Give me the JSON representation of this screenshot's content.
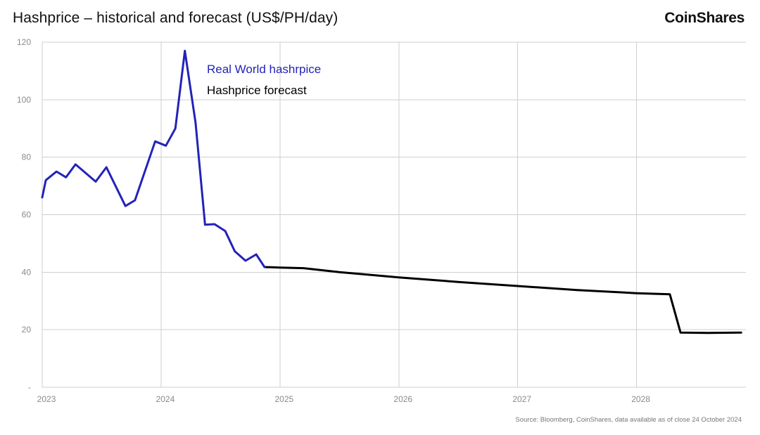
{
  "header": {
    "title": "Hashprice – historical and forecast (US$/PH/day)",
    "brand": "CoinShares"
  },
  "footer": {
    "source": "Source: Bloomberg, CoinShares, data available as of close 24 October 2024"
  },
  "colors": {
    "historical": "#2323b8",
    "forecast": "#000000",
    "grid": "#cfcfcf",
    "tick": "#8a8a8a"
  },
  "chart_data": {
    "type": "line",
    "title": "Hashprice – historical and forecast (US$/PH/day)",
    "xlabel": "",
    "ylabel": "",
    "xlim": [
      2023,
      2028.92
    ],
    "ylim": [
      0,
      120
    ],
    "y_ticks": [
      0,
      20,
      40,
      60,
      80,
      100,
      120
    ],
    "y_tick_labels": [
      "-",
      "20",
      "40",
      "60",
      "80",
      "100",
      "120"
    ],
    "x_ticks": [
      2023,
      2024,
      2025,
      2026,
      2027,
      2028
    ],
    "x_tick_labels": [
      "2023",
      "2024",
      "2025",
      "2026",
      "2027",
      "2028"
    ],
    "grid": true,
    "legend_position": "top-left",
    "series": [
      {
        "name": "Real World hashrpice",
        "color": "#2323b8",
        "x": [
          2023.0,
          2023.03,
          2023.12,
          2023.2,
          2023.28,
          2023.45,
          2023.54,
          2023.7,
          2023.78,
          2023.95,
          2024.04,
          2024.12,
          2024.2,
          2024.29,
          2024.37,
          2024.45,
          2024.54,
          2024.62,
          2024.71,
          2024.8,
          2024.87
        ],
        "y": [
          66,
          72,
          75,
          73,
          77.5,
          71.5,
          76.5,
          63,
          65,
          85.5,
          84,
          90,
          117,
          92,
          56.5,
          56.7,
          54.3,
          47.3,
          44,
          46.2,
          41.8
        ]
      },
      {
        "name": "Hashprice forecast",
        "color": "#000000",
        "x": [
          2024.87,
          2025.0,
          2025.2,
          2025.5,
          2026.0,
          2026.5,
          2027.0,
          2027.5,
          2028.0,
          2028.28,
          2028.37,
          2028.6,
          2028.88
        ],
        "y": [
          41.8,
          41.6,
          41.4,
          40,
          38.2,
          36.6,
          35.2,
          33.8,
          32.7,
          32.3,
          19,
          18.9,
          19
        ]
      }
    ]
  }
}
